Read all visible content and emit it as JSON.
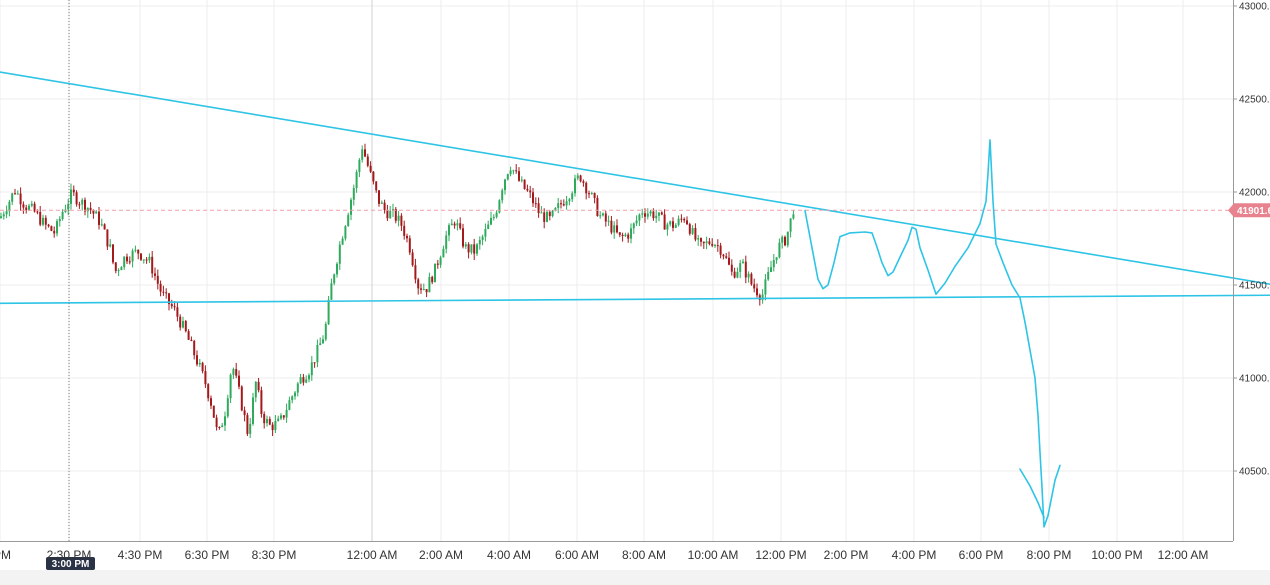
{
  "chart_data": {
    "type": "candlestick",
    "x_axis": {
      "tick_labels": [
        "PM",
        "2:30 PM",
        "4:30 PM",
        "6:30 PM",
        "8:30 PM",
        "12:00 AM",
        "2:00 AM",
        "4:00 AM",
        "6:00 AM",
        "8:00 AM",
        "10:00 AM",
        "12:00 PM",
        "2:00 PM",
        "4:00 PM",
        "6:00 PM",
        "8:00 PM",
        "10:00 PM",
        "12:00 AM"
      ],
      "crosshair_label": "3:00 PM"
    },
    "y_axis": {
      "tick_labels": [
        "43000.",
        "42500.",
        "42000.",
        "41500.",
        "41000.",
        "40500."
      ],
      "tick_values": [
        43000,
        42500,
        42000,
        41500,
        41000,
        40500
      ],
      "range": [
        40150,
        43030
      ]
    },
    "last_price": {
      "value": 41901.6,
      "label": "41901.6"
    },
    "price_path": [
      [
        0,
        41860
      ],
      [
        8,
        41940
      ],
      [
        15,
        42010
      ],
      [
        25,
        41930
      ],
      [
        35,
        41890
      ],
      [
        45,
        41820
      ],
      [
        55,
        41780
      ],
      [
        62,
        41890
      ],
      [
        72,
        41990
      ],
      [
        80,
        41950
      ],
      [
        90,
        41910
      ],
      [
        100,
        41840
      ],
      [
        110,
        41700
      ],
      [
        115,
        41570
      ],
      [
        125,
        41650
      ],
      [
        138,
        41680
      ],
      [
        150,
        41620
      ],
      [
        162,
        41450
      ],
      [
        175,
        41360
      ],
      [
        185,
        41250
      ],
      [
        195,
        41120
      ],
      [
        205,
        40980
      ],
      [
        212,
        40850
      ],
      [
        218,
        40680
      ],
      [
        225,
        40820
      ],
      [
        232,
        41080
      ],
      [
        240,
        40900
      ],
      [
        248,
        40700
      ],
      [
        256,
        40980
      ],
      [
        262,
        40800
      ],
      [
        270,
        40740
      ],
      [
        280,
        40760
      ],
      [
        290,
        40880
      ],
      [
        300,
        40990
      ],
      [
        310,
        41050
      ],
      [
        318,
        41150
      ],
      [
        325,
        41250
      ],
      [
        332,
        41520
      ],
      [
        340,
        41720
      ],
      [
        348,
        41900
      ],
      [
        355,
        42050
      ],
      [
        362,
        42250
      ],
      [
        370,
        42100
      ],
      [
        378,
        41960
      ],
      [
        385,
        41900
      ],
      [
        395,
        41870
      ],
      [
        402,
        41820
      ],
      [
        410,
        41700
      ],
      [
        418,
        41500
      ],
      [
        426,
        41480
      ],
      [
        435,
        41580
      ],
      [
        445,
        41750
      ],
      [
        455,
        41850
      ],
      [
        465,
        41700
      ],
      [
        475,
        41680
      ],
      [
        485,
        41780
      ],
      [
        495,
        41880
      ],
      [
        503,
        42050
      ],
      [
        510,
        42150
      ],
      [
        520,
        42050
      ],
      [
        530,
        41980
      ],
      [
        540,
        41880
      ],
      [
        550,
        41850
      ],
      [
        560,
        41930
      ],
      [
        570,
        42000
      ],
      [
        580,
        42090
      ],
      [
        590,
        41990
      ],
      [
        600,
        41870
      ],
      [
        610,
        41820
      ],
      [
        620,
        41750
      ],
      [
        630,
        41780
      ],
      [
        642,
        41900
      ],
      [
        655,
        41880
      ],
      [
        665,
        41830
      ],
      [
        675,
        41820
      ],
      [
        685,
        41870
      ],
      [
        692,
        41780
      ],
      [
        700,
        41700
      ],
      [
        712,
        41740
      ],
      [
        722,
        41690
      ],
      [
        732,
        41560
      ],
      [
        742,
        41610
      ],
      [
        752,
        41500
      ],
      [
        762,
        41440
      ],
      [
        770,
        41580
      ],
      [
        778,
        41700
      ],
      [
        786,
        41750
      ],
      [
        790,
        41830
      ],
      [
        795,
        41950
      ]
    ],
    "trendlines": [
      {
        "points": [
          [
            -50,
            42690
          ],
          [
            1275,
            41500
          ]
        ]
      },
      {
        "points": [
          [
            -50,
            41400
          ],
          [
            1275,
            41445
          ]
        ]
      }
    ],
    "drawn_projection": [
      [
        805,
        41900
      ],
      [
        812,
        41700
      ],
      [
        818,
        41530
      ],
      [
        823,
        41480
      ],
      [
        828,
        41500
      ],
      [
        834,
        41620
      ],
      [
        840,
        41760
      ],
      [
        850,
        41780
      ],
      [
        865,
        41785
      ],
      [
        872,
        41780
      ],
      [
        876,
        41720
      ],
      [
        882,
        41620
      ],
      [
        888,
        41550
      ],
      [
        893,
        41570
      ],
      [
        900,
        41650
      ],
      [
        908,
        41740
      ],
      [
        912,
        41810
      ],
      [
        916,
        41800
      ],
      [
        920,
        41700
      ],
      [
        928,
        41580
      ],
      [
        936,
        41450
      ],
      [
        945,
        41510
      ],
      [
        955,
        41600
      ],
      [
        968,
        41700
      ],
      [
        980,
        41830
      ],
      [
        986,
        41950
      ],
      [
        988,
        42100
      ],
      [
        990,
        42280
      ],
      [
        993,
        41950
      ],
      [
        996,
        41720
      ],
      [
        1003,
        41620
      ],
      [
        1012,
        41500
      ],
      [
        1020,
        41430
      ],
      [
        1025,
        41300
      ],
      [
        1030,
        41150
      ],
      [
        1035,
        41000
      ],
      [
        1038,
        40800
      ],
      [
        1040,
        40600
      ],
      [
        1042,
        40410
      ],
      [
        1044,
        40200
      ],
      [
        1048,
        40260
      ],
      [
        1055,
        40450
      ],
      [
        1060,
        40530
      ]
    ],
    "drawn_projection_tail": [
      [
        1020,
        40510
      ],
      [
        1030,
        40420
      ],
      [
        1038,
        40330
      ],
      [
        1044,
        40250
      ]
    ]
  }
}
